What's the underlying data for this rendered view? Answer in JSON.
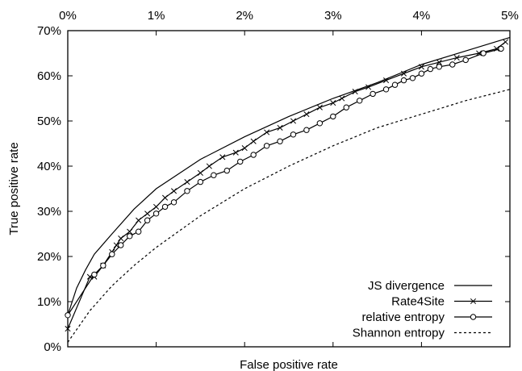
{
  "chart_data": {
    "type": "line",
    "title": "",
    "xlabel": "False positive rate",
    "ylabel": "True positive rate",
    "xlim": [
      0,
      5
    ],
    "ylim": [
      0,
      70
    ],
    "x_ticks": [
      0,
      1,
      2,
      3,
      4,
      5
    ],
    "x_tick_labels": [
      "0%",
      "1%",
      "2%",
      "3%",
      "4%",
      "5%"
    ],
    "y_ticks": [
      0,
      10,
      20,
      30,
      40,
      50,
      60,
      70
    ],
    "y_tick_labels": [
      "0%",
      "10%",
      "20%",
      "30%",
      "40%",
      "50%",
      "60%",
      "70%"
    ],
    "x_axis_position": "top",
    "grid": false,
    "legend_position": "bottom-right",
    "series": [
      {
        "name": "JS divergence",
        "marker": "none",
        "line_style": "solid",
        "x": [
          0,
          0.1,
          0.2,
          0.3,
          0.5,
          0.75,
          1.0,
          1.5,
          2.0,
          2.5,
          3.0,
          3.5,
          4.0,
          4.5,
          5.0
        ],
        "y": [
          7,
          13,
          17,
          20.5,
          25,
          30.5,
          35,
          41.5,
          46.5,
          51,
          55,
          58.5,
          62.5,
          65.5,
          68.5
        ]
      },
      {
        "name": "Rate4Site",
        "marker": "x",
        "line_style": "solid",
        "x": [
          0,
          0.25,
          0.3,
          0.4,
          0.5,
          0.55,
          0.6,
          0.7,
          0.8,
          0.9,
          1.0,
          1.1,
          1.2,
          1.35,
          1.5,
          1.6,
          1.75,
          1.9,
          2.0,
          2.1,
          2.25,
          2.4,
          2.55,
          2.7,
          2.85,
          3.0,
          3.1,
          3.25,
          3.4,
          3.6,
          3.8,
          4.0,
          4.2,
          4.4,
          4.65,
          4.85,
          4.95
        ],
        "y": [
          4,
          15.5,
          15.5,
          18,
          21,
          22.5,
          24,
          25.5,
          28,
          29.5,
          31,
          33,
          34.5,
          36.5,
          38.5,
          40,
          42,
          43,
          44,
          45.5,
          47.5,
          48.5,
          50,
          51.5,
          53,
          54,
          55,
          56.5,
          57.5,
          59,
          60.5,
          62,
          63,
          64,
          65,
          66,
          67.5
        ]
      },
      {
        "name": "relative entropy",
        "marker": "circle",
        "line_style": "solid",
        "x": [
          0,
          0.3,
          0.4,
          0.5,
          0.6,
          0.7,
          0.8,
          0.9,
          1.0,
          1.1,
          1.2,
          1.35,
          1.5,
          1.65,
          1.8,
          1.95,
          2.1,
          2.25,
          2.4,
          2.55,
          2.7,
          2.85,
          3.0,
          3.15,
          3.3,
          3.45,
          3.6,
          3.7,
          3.8,
          3.9,
          4.0,
          4.1,
          4.2,
          4.35,
          4.5,
          4.7,
          4.9
        ],
        "y": [
          7,
          16,
          18,
          20.5,
          22.5,
          24.5,
          25.5,
          28,
          29.5,
          31,
          32,
          34.5,
          36.5,
          38,
          39,
          41,
          42.5,
          44.5,
          45.5,
          47,
          48,
          49.5,
          51,
          53,
          54.5,
          56,
          57,
          58,
          59,
          59.5,
          60.5,
          61.5,
          62,
          62.5,
          63.5,
          65,
          66
        ]
      },
      {
        "name": "Shannon entropy",
        "marker": "none",
        "line_style": "dashed",
        "x": [
          0,
          0.25,
          0.5,
          0.75,
          1.0,
          1.5,
          2.0,
          2.5,
          3.0,
          3.5,
          4.0,
          4.5,
          5.0
        ],
        "y": [
          1,
          8,
          13.5,
          18,
          22,
          29,
          35,
          40,
          44.5,
          48.5,
          51.5,
          54.5,
          57
        ]
      }
    ]
  }
}
